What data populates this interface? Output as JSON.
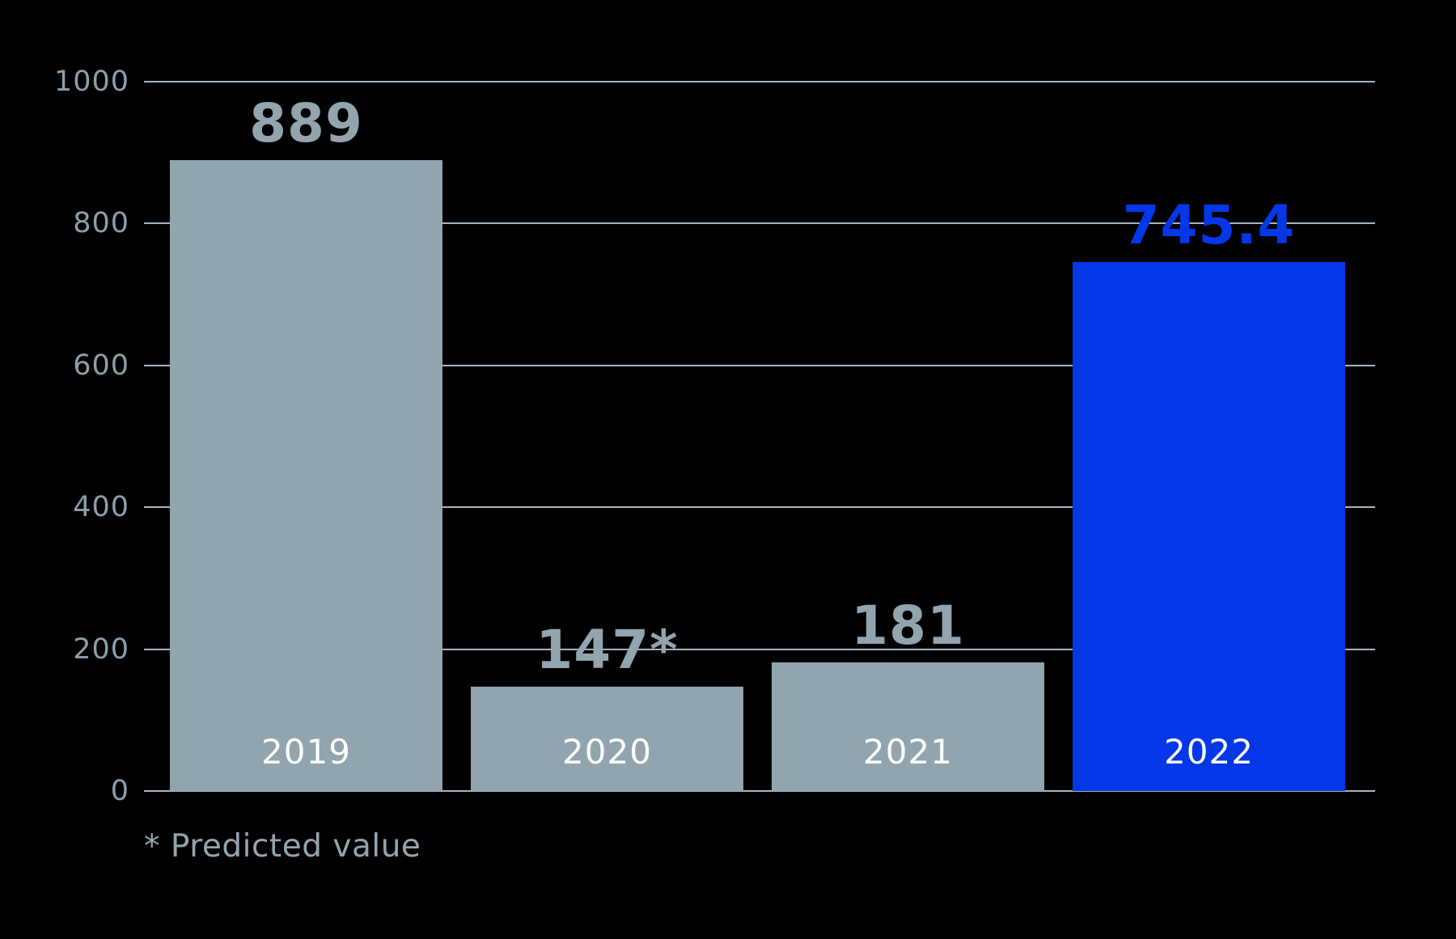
{
  "chart_data": {
    "type": "bar",
    "title": "",
    "xlabel": "",
    "ylabel": "",
    "categories": [
      "2019",
      "2020",
      "2021",
      "2022"
    ],
    "values": [
      889,
      147,
      181,
      745.4
    ],
    "value_labels": [
      "889",
      "147*",
      "181",
      "745.4"
    ],
    "highlight_index": 3,
    "ylim": [
      0,
      1000
    ],
    "yticks": [
      0,
      200,
      400,
      600,
      800,
      1000
    ],
    "ytick_labels": [
      "0",
      "200",
      "400",
      "600",
      "800",
      "1000"
    ],
    "grid": true,
    "legend_position": "none",
    "footnote": "* Predicted value",
    "colors": {
      "background": "#000000",
      "bar_default": "#92a4ad",
      "bar_highlight": "#0337e8",
      "value_label_default": "#92a4ad",
      "value_label_highlight": "#0337e8",
      "category_label": "#ffffff",
      "tick_label": "#8ba0ab",
      "gridline": "#a5b6bf",
      "footnote": "#93a5ae"
    }
  }
}
